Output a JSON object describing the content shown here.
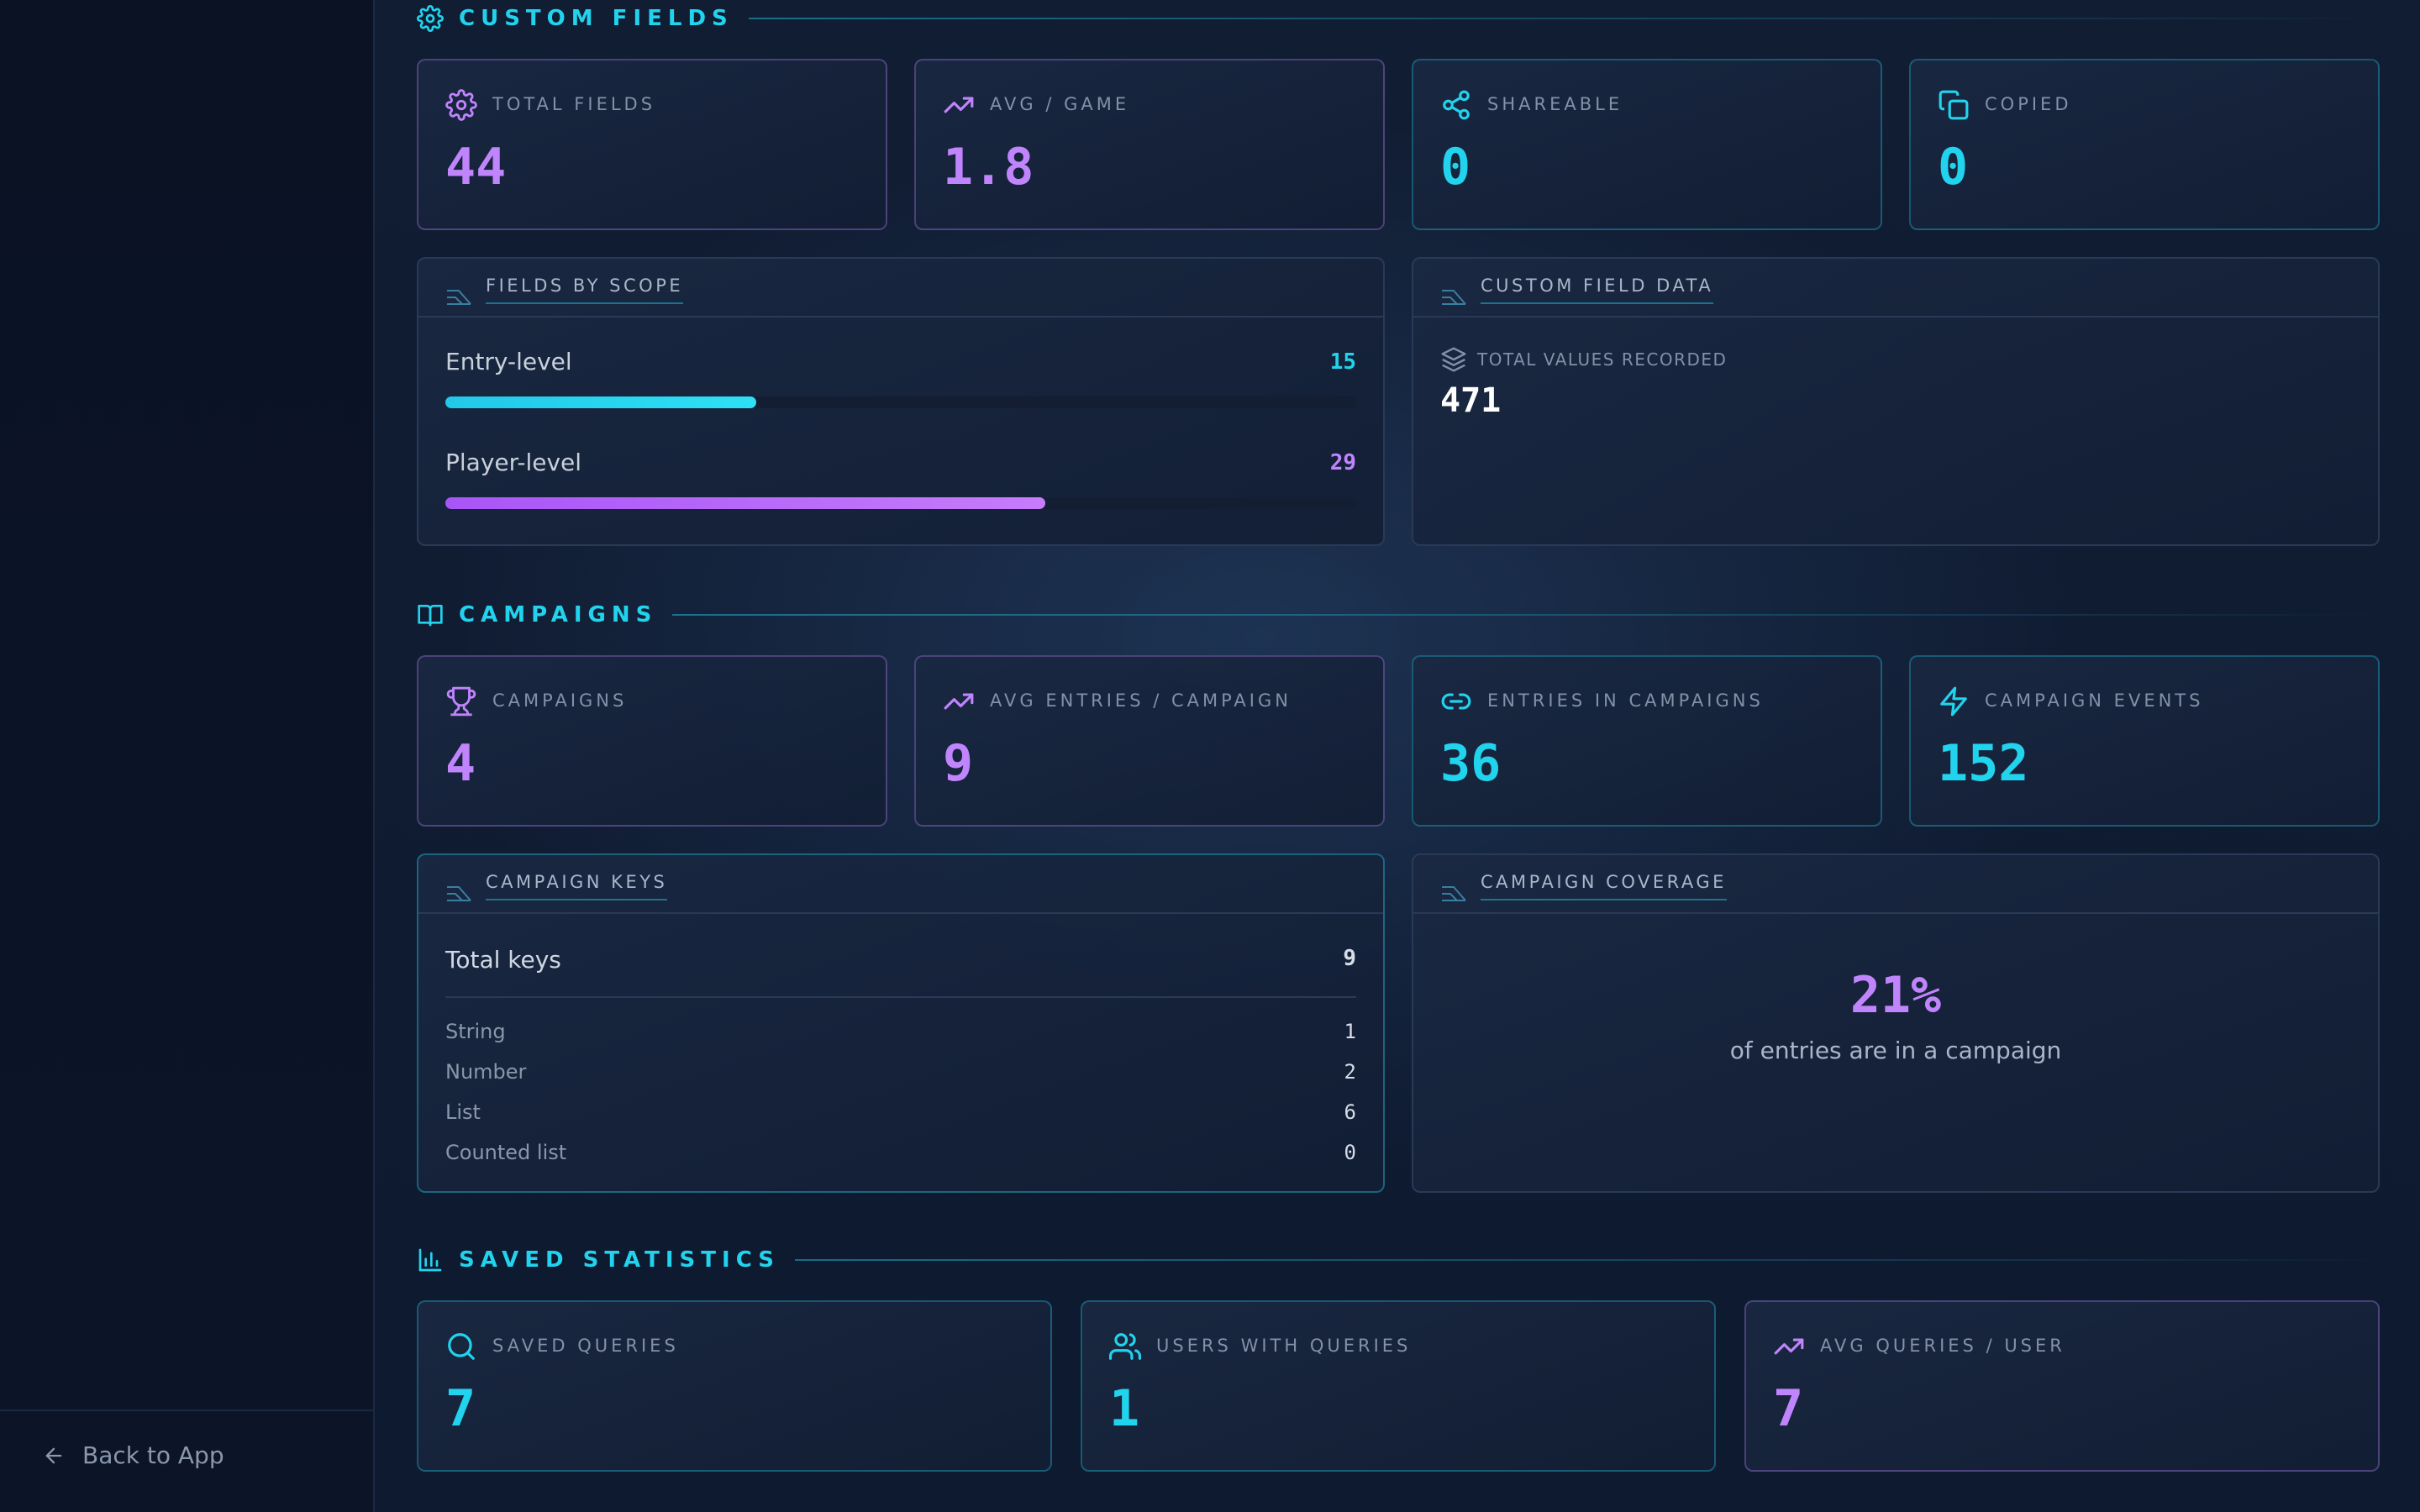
{
  "sidebar": {
    "back_label": "Back to App"
  },
  "custom_fields": {
    "title": "CUSTOM FIELDS",
    "stats": [
      {
        "label": "TOTAL FIELDS",
        "value": "44",
        "icon": "gear-icon"
      },
      {
        "label": "AVG / GAME",
        "value": "1.8",
        "icon": "trending-up-icon"
      },
      {
        "label": "SHAREABLE",
        "value": "0",
        "icon": "share-icon"
      },
      {
        "label": "COPIED",
        "value": "0",
        "icon": "copy-icon"
      }
    ],
    "scope_panel": {
      "title": "FIELDS BY SCOPE",
      "rows": [
        {
          "label": "Entry-level",
          "count": "15",
          "fraction": 0.3409
        },
        {
          "label": "Player-level",
          "count": "29",
          "fraction": 0.6591
        }
      ]
    },
    "data_panel": {
      "title": "CUSTOM FIELD DATA",
      "metric_label": "TOTAL VALUES RECORDED",
      "metric_value": "471"
    }
  },
  "campaigns": {
    "title": "CAMPAIGNS",
    "stats": [
      {
        "label": "CAMPAIGNS",
        "value": "4",
        "icon": "trophy-icon"
      },
      {
        "label": "AVG ENTRIES / CAMPAIGN",
        "value": "9",
        "icon": "trending-up-icon"
      },
      {
        "label": "ENTRIES IN CAMPAIGNS",
        "value": "36",
        "icon": "link-icon"
      },
      {
        "label": "CAMPAIGN EVENTS",
        "value": "152",
        "icon": "lightning-icon"
      }
    ],
    "keys_panel": {
      "title": "CAMPAIGN KEYS",
      "total_label": "Total keys",
      "total_value": "9",
      "rows": [
        {
          "key": "String",
          "value": "1"
        },
        {
          "key": "Number",
          "value": "2"
        },
        {
          "key": "List",
          "value": "6"
        },
        {
          "key": "Counted list",
          "value": "0"
        }
      ]
    },
    "coverage_panel": {
      "title": "CAMPAIGN COVERAGE",
      "percent": "21%",
      "caption": "of entries are in a campaign"
    }
  },
  "saved_statistics": {
    "title": "SAVED STATISTICS",
    "stats": [
      {
        "label": "SAVED QUERIES",
        "value": "7",
        "icon": "search-icon"
      },
      {
        "label": "USERS WITH QUERIES",
        "value": "1",
        "icon": "users-icon"
      },
      {
        "label": "AVG QUERIES / USER",
        "value": "7",
        "icon": "trending-up-icon"
      }
    ]
  },
  "colors": {
    "cyan": "#22d3ee",
    "purple": "#c084fc",
    "background": "#0e1a30"
  }
}
